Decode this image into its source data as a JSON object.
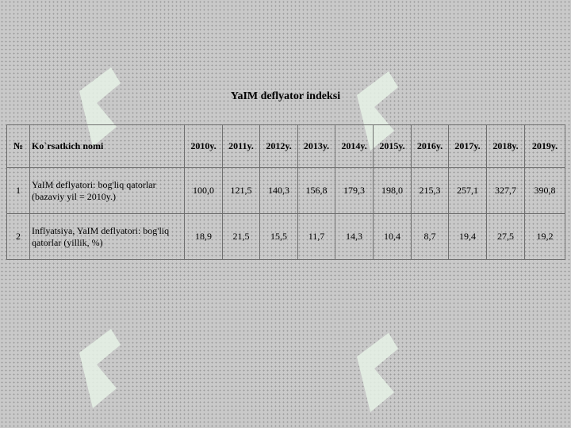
{
  "header": {
    "title": "YaIM deflyator indeksi"
  },
  "table": {
    "columns": [
      "№",
      "Ko`rsatkich nomi",
      "2010y.",
      "2011y.",
      "2012y.",
      "2013y.",
      "2014y.",
      "2015y.",
      "2016y.",
      "2017y.",
      "2018y.",
      "2019y."
    ],
    "rows": [
      [
        "1",
        "YaIM deflyatori: bog'liq qatorlar (bazaviy yil = 2010y.)",
        "100,0",
        "121,5",
        "140,3",
        "156,8",
        "179,3",
        "198,0",
        "215,3",
        "257,1",
        "327,7",
        "390,8"
      ],
      [
        "2",
        "Inflyatsiya, YaIM deflyatori: bog'liq qatorlar (yillik, %)",
        "18,9",
        "21,5",
        "15,5",
        "11,7",
        "14,3",
        "10,4",
        "8,7",
        "19,4",
        "27,5",
        "19,2"
      ]
    ]
  }
}
